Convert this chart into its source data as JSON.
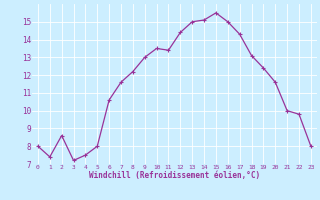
{
  "x": [
    0,
    1,
    2,
    3,
    4,
    5,
    6,
    7,
    8,
    9,
    10,
    11,
    12,
    13,
    14,
    15,
    16,
    17,
    18,
    19,
    20,
    21,
    22,
    23
  ],
  "y": [
    8.0,
    7.4,
    8.6,
    7.2,
    7.5,
    8.0,
    10.6,
    11.6,
    12.2,
    13.0,
    13.5,
    13.4,
    14.4,
    15.0,
    15.1,
    15.5,
    15.0,
    14.3,
    13.1,
    12.4,
    11.6,
    10.0,
    9.8,
    8.0
  ],
  "line_color": "#993399",
  "marker": "+",
  "marker_size": 3.5,
  "marker_linewidth": 0.8,
  "bg_color": "#cceeff",
  "grid_color": "#ffffff",
  "xlabel": "Windchill (Refroidissement éolien,°C)",
  "xlabel_color": "#993399",
  "tick_color": "#993399",
  "ylim": [
    7,
    16
  ],
  "xlim": [
    -0.5,
    23.5
  ],
  "yticks": [
    7,
    8,
    9,
    10,
    11,
    12,
    13,
    14,
    15
  ],
  "xticks": [
    0,
    1,
    2,
    3,
    4,
    5,
    6,
    7,
    8,
    9,
    10,
    11,
    12,
    13,
    14,
    15,
    16,
    17,
    18,
    19,
    20,
    21,
    22,
    23
  ],
  "line_width": 0.9
}
